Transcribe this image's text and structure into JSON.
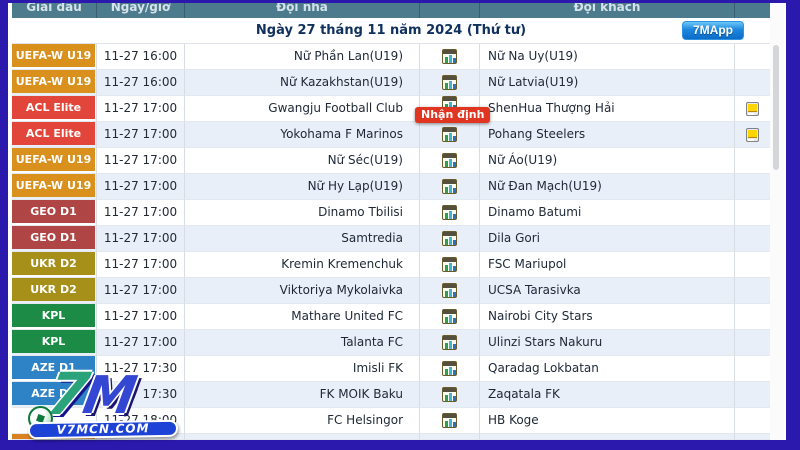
{
  "header": {
    "columns": [
      "Giải đấu",
      "Ngày/giờ",
      "Đội nhà",
      "",
      "Đội khách",
      ""
    ]
  },
  "date_bar": {
    "title": "Ngày 27 tháng 11 năm 2024 (Thứ tư)",
    "app_button": "7MApp"
  },
  "analysis_badge_label": "Nhận định",
  "league_colors": {
    "UEFA-W U19": "#d9901c",
    "ACL Elite": "#e2453a",
    "GEO D1": "#b04545",
    "UKR D2": "#a79019",
    "KPL": "#1b8b45",
    "AZE D1": "#2e82c6"
  },
  "table": {
    "rows": [
      {
        "league": "UEFA-W U19",
        "time": "11-27 16:00",
        "home": "Nữ Phần Lan(U19)",
        "away": "Nữ Na Uy(U19)",
        "note": false,
        "analysis": false
      },
      {
        "league": "UEFA-W U19",
        "time": "11-27 16:00",
        "home": "Nữ Kazakhstan(U19)",
        "away": "Nữ Latvia(U19)",
        "note": false,
        "analysis": false
      },
      {
        "league": "ACL Elite",
        "time": "11-27 17:00",
        "home": "Gwangju Football Club",
        "away": "ShenHua Thượng Hải",
        "note": true,
        "analysis": true
      },
      {
        "league": "ACL Elite",
        "time": "11-27 17:00",
        "home": "Yokohama F Marinos",
        "away": "Pohang Steelers",
        "note": true,
        "analysis": false
      },
      {
        "league": "UEFA-W U19",
        "time": "11-27 17:00",
        "home": "Nữ Séc(U19)",
        "away": "Nữ Áo(U19)",
        "note": false,
        "analysis": false
      },
      {
        "league": "UEFA-W U19",
        "time": "11-27 17:00",
        "home": "Nữ Hy Lạp(U19)",
        "away": "Nữ Đan Mạch(U19)",
        "note": false,
        "analysis": false
      },
      {
        "league": "GEO D1",
        "time": "11-27 17:00",
        "home": "Dinamo Tbilisi",
        "away": "Dinamo Batumi",
        "note": false,
        "analysis": false
      },
      {
        "league": "GEO D1",
        "time": "11-27 17:00",
        "home": "Samtredia",
        "away": "Dila Gori",
        "note": false,
        "analysis": false
      },
      {
        "league": "UKR D2",
        "time": "11-27 17:00",
        "home": "Kremin Kremenchuk",
        "away": "FSC Mariupol",
        "note": false,
        "analysis": false
      },
      {
        "league": "UKR D2",
        "time": "11-27 17:00",
        "home": "Viktoriya Mykolaivka",
        "away": "UCSA Tarasivka",
        "note": false,
        "analysis": false
      },
      {
        "league": "KPL",
        "time": "11-27 17:00",
        "home": "Mathare United FC",
        "away": "Nairobi City Stars",
        "note": false,
        "analysis": false
      },
      {
        "league": "KPL",
        "time": "11-27 17:00",
        "home": "Talanta FC",
        "away": "Ulinzi Stars Nakuru",
        "note": false,
        "analysis": false
      },
      {
        "league": "AZE D1",
        "time": "11-27 17:30",
        "home": "Imisli FK",
        "away": "Qaradag Lokbatan",
        "note": false,
        "analysis": false
      },
      {
        "league": "AZE D1",
        "time": "11-27 17:30",
        "home": "FK MOIK Baku",
        "away": "Zaqatala FK",
        "note": false,
        "analysis": false
      },
      {
        "league": "",
        "time": "11-27 18:00",
        "home": "FC Helsingor",
        "away": "HB Koge",
        "note": false,
        "analysis": false
      }
    ],
    "partial_row_color": "#d9821f"
  },
  "watermark": {
    "seven": "7",
    "m": "M",
    "domain": "V7MCN.COM"
  }
}
